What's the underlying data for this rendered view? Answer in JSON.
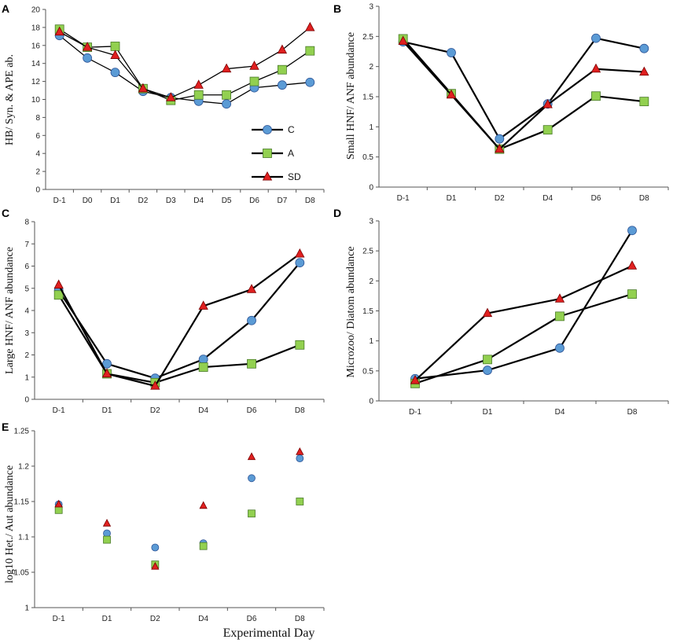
{
  "series_styles": {
    "C": {
      "fill": "#5b9bd5",
      "stroke": "#2f5597",
      "marker": "circle"
    },
    "A": {
      "fill": "#92d050",
      "stroke": "#4a7a2a",
      "marker": "square"
    },
    "SD": {
      "fill": "#e02020",
      "stroke": "#7a0000",
      "marker": "triangle"
    }
  },
  "legend": [
    {
      "key": "C",
      "label": "C"
    },
    {
      "key": "A",
      "label": "A"
    },
    {
      "key": "SD",
      "label": "SD"
    }
  ],
  "chart_data": [
    {
      "panel": "A",
      "type": "line",
      "ylabel": "HB/ Syn. & APE ab.",
      "xlabel": "",
      "ylim": [
        0,
        20
      ],
      "yticks": [
        0,
        2,
        4,
        6,
        8,
        10,
        12,
        14,
        16,
        18,
        20
      ],
      "categories": [
        "D-1",
        "D0",
        "D1",
        "D2",
        "D3",
        "D4",
        "D5",
        "D6",
        "D7",
        "D8"
      ],
      "series": [
        {
          "name": "C",
          "values": [
            17.1,
            14.6,
            13.0,
            10.9,
            10.2,
            9.8,
            9.5,
            11.3,
            11.6,
            11.9
          ]
        },
        {
          "name": "A",
          "values": [
            17.8,
            15.8,
            15.9,
            11.2,
            9.9,
            10.5,
            10.5,
            12.0,
            13.3,
            15.4
          ]
        },
        {
          "name": "SD",
          "values": [
            17.5,
            15.8,
            14.9,
            11.2,
            10.2,
            11.6,
            13.4,
            13.7,
            15.5,
            18.0
          ]
        }
      ]
    },
    {
      "panel": "B",
      "type": "line",
      "ylabel": "Small HNF/ ANF abundance",
      "xlabel": "",
      "ylim": [
        0,
        3
      ],
      "yticks": [
        0,
        0.5,
        1,
        1.5,
        2,
        2.5,
        3
      ],
      "categories": [
        "D-1",
        "D1",
        "D2",
        "D4",
        "D6",
        "D8"
      ],
      "series": [
        {
          "name": "C",
          "values": [
            2.41,
            2.23,
            0.8,
            1.38,
            2.47,
            2.3
          ]
        },
        {
          "name": "A",
          "values": [
            2.46,
            1.55,
            0.63,
            0.95,
            1.51,
            1.42
          ]
        },
        {
          "name": "SD",
          "values": [
            2.42,
            1.53,
            0.63,
            1.37,
            1.96,
            1.91
          ]
        }
      ]
    },
    {
      "panel": "C",
      "type": "line",
      "ylabel": "Large HNF/ ANF abundance",
      "xlabel": "",
      "ylim": [
        0,
        8
      ],
      "yticks": [
        0,
        1,
        2,
        3,
        4,
        5,
        6,
        7,
        8
      ],
      "categories": [
        "D-1",
        "D1",
        "D2",
        "D4",
        "D6",
        "D8"
      ],
      "series": [
        {
          "name": "C",
          "values": [
            4.9,
            1.6,
            0.95,
            1.8,
            3.55,
            6.15
          ]
        },
        {
          "name": "A",
          "values": [
            4.7,
            1.15,
            0.75,
            1.45,
            1.6,
            2.45
          ]
        },
        {
          "name": "SD",
          "values": [
            5.15,
            1.15,
            0.6,
            4.2,
            4.95,
            6.55
          ]
        }
      ]
    },
    {
      "panel": "D",
      "type": "line",
      "ylabel": "Microzoo/ Diatom abundance",
      "xlabel": "",
      "ylim": [
        0,
        3
      ],
      "yticks": [
        0,
        0.5,
        1,
        1.5,
        2,
        2.5,
        3
      ],
      "categories": [
        "D-1",
        "D1",
        "D4",
        "D8"
      ],
      "series": [
        {
          "name": "C",
          "values": [
            0.37,
            0.51,
            0.88,
            2.84
          ]
        },
        {
          "name": "A",
          "values": [
            0.29,
            0.69,
            1.41,
            1.78
          ]
        },
        {
          "name": "SD",
          "values": [
            0.34,
            1.46,
            1.7,
            2.25
          ]
        }
      ]
    },
    {
      "panel": "E",
      "type": "scatter",
      "ylabel": "log10 Het./ Aut abundance",
      "xlabel": "Experimental Day",
      "ylim": [
        1,
        1.25
      ],
      "yticks": [
        1,
        1.05,
        1.1,
        1.15,
        1.2,
        1.25
      ],
      "categories": [
        "D-1",
        "D1",
        "D2",
        "D4",
        "D6",
        "D8"
      ],
      "series": [
        {
          "name": "C",
          "values": [
            1.146,
            1.105,
            1.085,
            1.091,
            1.183,
            1.211
          ]
        },
        {
          "name": "A",
          "values": [
            1.138,
            1.096,
            1.061,
            1.087,
            1.133,
            1.15
          ]
        },
        {
          "name": "SD",
          "values": [
            1.146,
            1.119,
            1.058,
            1.144,
            1.213,
            1.22
          ]
        }
      ]
    }
  ]
}
